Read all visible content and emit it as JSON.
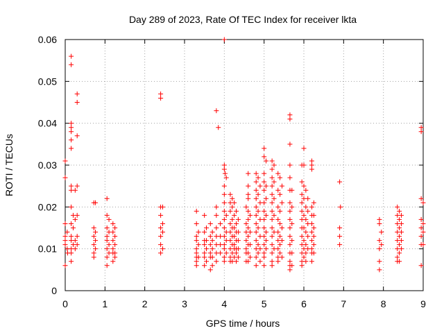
{
  "chart_data": {
    "type": "scatter",
    "title": "Day 289 of 2023, Rate Of TEC Index for receiver lkta",
    "xlabel": "GPS time / hours",
    "ylabel": "ROTI / TECUs",
    "xlim": [
      0,
      9
    ],
    "ylim": [
      0,
      0.06
    ],
    "xticks": [
      "0",
      "1",
      "2",
      "3",
      "4",
      "5",
      "6",
      "7",
      "8",
      "9"
    ],
    "yticks": [
      "0",
      "0.01",
      "0.02",
      "0.03",
      "0.04",
      "0.05",
      "0.06"
    ],
    "grid": true,
    "marker": "plus",
    "color": "#ff0000",
    "points": [
      [
        0.0,
        0.031
      ],
      [
        0.0,
        0.027
      ],
      [
        0.0,
        0.016
      ],
      [
        0.0,
        0.013
      ],
      [
        0.0,
        0.012
      ],
      [
        0.0,
        0.011
      ],
      [
        0.0,
        0.006
      ],
      [
        0.05,
        0.01
      ],
      [
        0.05,
        0.014
      ],
      [
        0.06,
        0.009
      ],
      [
        0.15,
        0.056
      ],
      [
        0.15,
        0.054
      ],
      [
        0.15,
        0.04
      ],
      [
        0.15,
        0.039
      ],
      [
        0.15,
        0.038
      ],
      [
        0.15,
        0.036
      ],
      [
        0.15,
        0.034
      ],
      [
        0.15,
        0.025
      ],
      [
        0.15,
        0.024
      ],
      [
        0.15,
        0.02
      ],
      [
        0.15,
        0.016
      ],
      [
        0.15,
        0.013
      ],
      [
        0.15,
        0.012
      ],
      [
        0.15,
        0.01
      ],
      [
        0.15,
        0.009
      ],
      [
        0.15,
        0.007
      ],
      [
        0.2,
        0.018
      ],
      [
        0.2,
        0.015
      ],
      [
        0.2,
        0.011
      ],
      [
        0.25,
        0.024
      ],
      [
        0.25,
        0.017
      ],
      [
        0.25,
        0.012
      ],
      [
        0.25,
        0.01
      ],
      [
        0.3,
        0.047
      ],
      [
        0.3,
        0.045
      ],
      [
        0.3,
        0.037
      ],
      [
        0.3,
        0.025
      ],
      [
        0.3,
        0.018
      ],
      [
        0.3,
        0.013
      ],
      [
        0.3,
        0.011
      ],
      [
        0.72,
        0.021
      ],
      [
        0.72,
        0.015
      ],
      [
        0.72,
        0.013
      ],
      [
        0.72,
        0.011
      ],
      [
        0.72,
        0.009
      ],
      [
        0.72,
        0.008
      ],
      [
        0.76,
        0.021
      ],
      [
        0.76,
        0.014
      ],
      [
        0.76,
        0.012
      ],
      [
        0.76,
        0.01
      ],
      [
        1.05,
        0.022
      ],
      [
        1.05,
        0.018
      ],
      [
        1.05,
        0.015
      ],
      [
        1.05,
        0.013
      ],
      [
        1.05,
        0.012
      ],
      [
        1.05,
        0.01
      ],
      [
        1.05,
        0.008
      ],
      [
        1.05,
        0.006
      ],
      [
        1.1,
        0.017
      ],
      [
        1.1,
        0.014
      ],
      [
        1.1,
        0.011
      ],
      [
        1.1,
        0.009
      ],
      [
        1.2,
        0.016
      ],
      [
        1.2,
        0.014
      ],
      [
        1.2,
        0.012
      ],
      [
        1.2,
        0.01
      ],
      [
        1.2,
        0.009
      ],
      [
        1.2,
        0.007
      ],
      [
        1.25,
        0.015
      ],
      [
        1.25,
        0.013
      ],
      [
        1.25,
        0.011
      ],
      [
        1.25,
        0.009
      ],
      [
        1.25,
        0.008
      ],
      [
        2.4,
        0.047
      ],
      [
        2.4,
        0.046
      ],
      [
        2.4,
        0.02
      ],
      [
        2.4,
        0.018
      ],
      [
        2.4,
        0.015
      ],
      [
        2.4,
        0.013
      ],
      [
        2.4,
        0.011
      ],
      [
        2.4,
        0.009
      ],
      [
        2.45,
        0.02
      ],
      [
        2.45,
        0.016
      ],
      [
        2.45,
        0.014
      ],
      [
        2.45,
        0.01
      ],
      [
        3.3,
        0.019
      ],
      [
        3.3,
        0.016
      ],
      [
        3.3,
        0.013
      ],
      [
        3.3,
        0.012
      ],
      [
        3.3,
        0.01
      ],
      [
        3.3,
        0.009
      ],
      [
        3.3,
        0.008
      ],
      [
        3.3,
        0.007
      ],
      [
        3.3,
        0.006
      ],
      [
        3.35,
        0.014
      ],
      [
        3.35,
        0.011
      ],
      [
        3.35,
        0.008
      ],
      [
        3.5,
        0.018
      ],
      [
        3.5,
        0.014
      ],
      [
        3.5,
        0.012
      ],
      [
        3.5,
        0.011
      ],
      [
        3.5,
        0.009
      ],
      [
        3.5,
        0.008
      ],
      [
        3.5,
        0.006
      ],
      [
        3.55,
        0.015
      ],
      [
        3.55,
        0.012
      ],
      [
        3.55,
        0.01
      ],
      [
        3.55,
        0.007
      ],
      [
        3.65,
        0.016
      ],
      [
        3.65,
        0.013
      ],
      [
        3.65,
        0.011
      ],
      [
        3.65,
        0.009
      ],
      [
        3.65,
        0.008
      ],
      [
        3.65,
        0.005
      ],
      [
        3.7,
        0.014
      ],
      [
        3.7,
        0.012
      ],
      [
        3.7,
        0.01
      ],
      [
        3.7,
        0.008
      ],
      [
        3.7,
        0.006
      ],
      [
        3.8,
        0.043
      ],
      [
        3.85,
        0.039
      ],
      [
        3.8,
        0.02
      ],
      [
        3.8,
        0.018
      ],
      [
        3.8,
        0.015
      ],
      [
        3.8,
        0.013
      ],
      [
        3.8,
        0.011
      ],
      [
        3.8,
        0.009
      ],
      [
        3.8,
        0.007
      ],
      [
        3.9,
        0.016
      ],
      [
        3.9,
        0.013
      ],
      [
        3.9,
        0.011
      ],
      [
        3.9,
        0.009
      ],
      [
        4.0,
        0.06
      ],
      [
        4.0,
        0.03
      ],
      [
        4.0,
        0.029
      ],
      [
        4.02,
        0.028
      ],
      [
        4.05,
        0.027
      ],
      [
        4.0,
        0.025
      ],
      [
        4.0,
        0.023
      ],
      [
        4.0,
        0.021
      ],
      [
        4.0,
        0.019
      ],
      [
        4.0,
        0.017
      ],
      [
        4.0,
        0.015
      ],
      [
        4.0,
        0.013
      ],
      [
        4.0,
        0.011
      ],
      [
        4.0,
        0.01
      ],
      [
        4.0,
        0.008
      ],
      [
        4.0,
        0.007
      ],
      [
        4.05,
        0.018
      ],
      [
        4.05,
        0.014
      ],
      [
        4.05,
        0.012
      ],
      [
        4.05,
        0.009
      ],
      [
        4.15,
        0.023
      ],
      [
        4.15,
        0.021
      ],
      [
        4.15,
        0.019
      ],
      [
        4.15,
        0.016
      ],
      [
        4.15,
        0.014
      ],
      [
        4.15,
        0.012
      ],
      [
        4.15,
        0.01
      ],
      [
        4.15,
        0.008
      ],
      [
        4.15,
        0.007
      ],
      [
        4.2,
        0.022
      ],
      [
        4.2,
        0.02
      ],
      [
        4.2,
        0.017
      ],
      [
        4.2,
        0.015
      ],
      [
        4.2,
        0.013
      ],
      [
        4.2,
        0.011
      ],
      [
        4.2,
        0.009
      ],
      [
        4.2,
        0.007
      ],
      [
        4.25,
        0.021
      ],
      [
        4.25,
        0.018
      ],
      [
        4.25,
        0.015
      ],
      [
        4.25,
        0.013
      ],
      [
        4.25,
        0.011
      ],
      [
        4.25,
        0.01
      ],
      [
        4.25,
        0.008
      ],
      [
        4.3,
        0.019
      ],
      [
        4.3,
        0.016
      ],
      [
        4.3,
        0.014
      ],
      [
        4.3,
        0.012
      ],
      [
        4.3,
        0.01
      ],
      [
        4.3,
        0.009
      ],
      [
        4.3,
        0.007
      ],
      [
        4.35,
        0.017
      ],
      [
        4.35,
        0.014
      ],
      [
        4.35,
        0.012
      ],
      [
        4.35,
        0.01
      ],
      [
        4.35,
        0.008
      ],
      [
        4.55,
        0.02
      ],
      [
        4.55,
        0.016
      ],
      [
        4.55,
        0.014
      ],
      [
        4.55,
        0.012
      ],
      [
        4.55,
        0.01
      ],
      [
        4.55,
        0.009
      ],
      [
        4.55,
        0.007
      ],
      [
        4.6,
        0.028
      ],
      [
        4.6,
        0.025
      ],
      [
        4.6,
        0.023
      ],
      [
        4.6,
        0.022
      ],
      [
        4.6,
        0.019
      ],
      [
        4.6,
        0.017
      ],
      [
        4.6,
        0.015
      ],
      [
        4.6,
        0.013
      ],
      [
        4.6,
        0.011
      ],
      [
        4.6,
        0.009
      ],
      [
        4.6,
        0.007
      ],
      [
        4.65,
        0.018
      ],
      [
        4.65,
        0.014
      ],
      [
        4.65,
        0.011
      ],
      [
        4.65,
        0.008
      ],
      [
        4.8,
        0.028
      ],
      [
        4.8,
        0.026
      ],
      [
        4.8,
        0.024
      ],
      [
        4.8,
        0.022
      ],
      [
        4.8,
        0.02
      ],
      [
        4.8,
        0.018
      ],
      [
        4.8,
        0.016
      ],
      [
        4.8,
        0.014
      ],
      [
        4.8,
        0.012
      ],
      [
        4.8,
        0.01
      ],
      [
        4.8,
        0.008
      ],
      [
        4.8,
        0.006
      ],
      [
        4.85,
        0.027
      ],
      [
        4.85,
        0.023
      ],
      [
        4.85,
        0.019
      ],
      [
        4.85,
        0.015
      ],
      [
        4.85,
        0.011
      ],
      [
        4.85,
        0.009
      ],
      [
        4.9,
        0.025
      ],
      [
        4.9,
        0.021
      ],
      [
        4.9,
        0.017
      ],
      [
        4.9,
        0.013
      ],
      [
        4.9,
        0.01
      ],
      [
        4.9,
        0.007
      ],
      [
        5.0,
        0.034
      ],
      [
        5.0,
        0.032
      ],
      [
        5.0,
        0.028
      ],
      [
        5.0,
        0.026
      ],
      [
        5.0,
        0.024
      ],
      [
        5.0,
        0.021
      ],
      [
        5.0,
        0.019
      ],
      [
        5.0,
        0.017
      ],
      [
        5.0,
        0.015
      ],
      [
        5.0,
        0.013
      ],
      [
        5.0,
        0.011
      ],
      [
        5.0,
        0.009
      ],
      [
        5.0,
        0.008
      ],
      [
        5.0,
        0.006
      ],
      [
        5.05,
        0.031
      ],
      [
        5.05,
        0.025
      ],
      [
        5.05,
        0.022
      ],
      [
        5.05,
        0.018
      ],
      [
        5.05,
        0.014
      ],
      [
        5.05,
        0.012
      ],
      [
        5.05,
        0.01
      ],
      [
        5.2,
        0.031
      ],
      [
        5.2,
        0.029
      ],
      [
        5.2,
        0.027
      ],
      [
        5.2,
        0.025
      ],
      [
        5.2,
        0.023
      ],
      [
        5.2,
        0.021
      ],
      [
        5.2,
        0.019
      ],
      [
        5.2,
        0.017
      ],
      [
        5.2,
        0.015
      ],
      [
        5.2,
        0.013
      ],
      [
        5.2,
        0.011
      ],
      [
        5.2,
        0.009
      ],
      [
        5.2,
        0.007
      ],
      [
        5.2,
        0.006
      ],
      [
        5.25,
        0.03
      ],
      [
        5.25,
        0.026
      ],
      [
        5.25,
        0.022
      ],
      [
        5.25,
        0.018
      ],
      [
        5.25,
        0.014
      ],
      [
        5.25,
        0.01
      ],
      [
        5.35,
        0.028
      ],
      [
        5.35,
        0.024
      ],
      [
        5.35,
        0.02
      ],
      [
        5.35,
        0.017
      ],
      [
        5.35,
        0.014
      ],
      [
        5.35,
        0.012
      ],
      [
        5.35,
        0.01
      ],
      [
        5.35,
        0.008
      ],
      [
        5.35,
        0.007
      ],
      [
        5.4,
        0.027
      ],
      [
        5.4,
        0.023
      ],
      [
        5.4,
        0.019
      ],
      [
        5.4,
        0.016
      ],
      [
        5.4,
        0.013
      ],
      [
        5.4,
        0.011
      ],
      [
        5.4,
        0.009
      ],
      [
        5.45,
        0.025
      ],
      [
        5.45,
        0.021
      ],
      [
        5.45,
        0.015
      ],
      [
        5.45,
        0.012
      ],
      [
        5.45,
        0.008
      ],
      [
        5.65,
        0.042
      ],
      [
        5.65,
        0.041
      ],
      [
        5.65,
        0.035
      ],
      [
        5.65,
        0.03
      ],
      [
        5.65,
        0.027
      ],
      [
        5.65,
        0.024
      ],
      [
        5.65,
        0.021
      ],
      [
        5.65,
        0.019
      ],
      [
        5.65,
        0.017
      ],
      [
        5.65,
        0.015
      ],
      [
        5.65,
        0.013
      ],
      [
        5.65,
        0.011
      ],
      [
        5.65,
        0.009
      ],
      [
        5.65,
        0.007
      ],
      [
        5.65,
        0.006
      ],
      [
        5.65,
        0.005
      ],
      [
        5.7,
        0.024
      ],
      [
        5.7,
        0.02
      ],
      [
        5.7,
        0.016
      ],
      [
        5.7,
        0.012
      ],
      [
        5.7,
        0.009
      ],
      [
        5.7,
        0.006
      ],
      [
        5.95,
        0.03
      ],
      [
        5.95,
        0.026
      ],
      [
        5.95,
        0.023
      ],
      [
        5.95,
        0.021
      ],
      [
        5.95,
        0.019
      ],
      [
        5.95,
        0.017
      ],
      [
        5.95,
        0.015
      ],
      [
        5.95,
        0.013
      ],
      [
        5.95,
        0.011
      ],
      [
        5.95,
        0.009
      ],
      [
        5.95,
        0.007
      ],
      [
        5.95,
        0.006
      ],
      [
        6.0,
        0.034
      ],
      [
        6.0,
        0.03
      ],
      [
        6.0,
        0.025
      ],
      [
        6.0,
        0.022
      ],
      [
        6.0,
        0.018
      ],
      [
        6.0,
        0.015
      ],
      [
        6.0,
        0.012
      ],
      [
        6.0,
        0.01
      ],
      [
        6.0,
        0.008
      ],
      [
        6.05,
        0.024
      ],
      [
        6.05,
        0.02
      ],
      [
        6.05,
        0.017
      ],
      [
        6.05,
        0.014
      ],
      [
        6.05,
        0.011
      ],
      [
        6.05,
        0.009
      ],
      [
        6.05,
        0.007
      ],
      [
        6.1,
        0.022
      ],
      [
        6.1,
        0.019
      ],
      [
        6.1,
        0.016
      ],
      [
        6.1,
        0.013
      ],
      [
        6.1,
        0.01
      ],
      [
        6.2,
        0.031
      ],
      [
        6.2,
        0.03
      ],
      [
        6.2,
        0.029
      ],
      [
        6.2,
        0.02
      ],
      [
        6.2,
        0.018
      ],
      [
        6.2,
        0.016
      ],
      [
        6.2,
        0.014
      ],
      [
        6.2,
        0.012
      ],
      [
        6.2,
        0.01
      ],
      [
        6.2,
        0.009
      ],
      [
        6.2,
        0.007
      ],
      [
        6.25,
        0.021
      ],
      [
        6.25,
        0.018
      ],
      [
        6.25,
        0.015
      ],
      [
        6.25,
        0.013
      ],
      [
        6.25,
        0.011
      ],
      [
        6.25,
        0.009
      ],
      [
        6.9,
        0.026
      ],
      [
        6.92,
        0.02
      ],
      [
        6.9,
        0.015
      ],
      [
        6.9,
        0.013
      ],
      [
        6.9,
        0.011
      ],
      [
        7.9,
        0.017
      ],
      [
        7.9,
        0.016
      ],
      [
        7.9,
        0.012
      ],
      [
        7.9,
        0.01
      ],
      [
        7.9,
        0.007
      ],
      [
        7.9,
        0.005
      ],
      [
        7.95,
        0.014
      ],
      [
        7.95,
        0.011
      ],
      [
        8.35,
        0.02
      ],
      [
        8.35,
        0.018
      ],
      [
        8.35,
        0.016
      ],
      [
        8.35,
        0.014
      ],
      [
        8.35,
        0.012
      ],
      [
        8.35,
        0.01
      ],
      [
        8.35,
        0.008
      ],
      [
        8.35,
        0.007
      ],
      [
        8.4,
        0.019
      ],
      [
        8.4,
        0.017
      ],
      [
        8.4,
        0.015
      ],
      [
        8.4,
        0.013
      ],
      [
        8.4,
        0.011
      ],
      [
        8.4,
        0.009
      ],
      [
        8.4,
        0.007
      ],
      [
        8.45,
        0.018
      ],
      [
        8.45,
        0.016
      ],
      [
        8.45,
        0.014
      ],
      [
        8.45,
        0.012
      ],
      [
        8.45,
        0.01
      ],
      [
        8.95,
        0.039
      ],
      [
        8.95,
        0.038
      ],
      [
        8.95,
        0.022
      ],
      [
        8.95,
        0.017
      ],
      [
        8.95,
        0.015
      ],
      [
        8.95,
        0.013
      ],
      [
        8.95,
        0.011
      ],
      [
        8.95,
        0.006
      ],
      [
        9.0,
        0.021
      ],
      [
        9.0,
        0.016
      ],
      [
        9.0,
        0.014
      ],
      [
        9.0,
        0.011
      ]
    ]
  }
}
